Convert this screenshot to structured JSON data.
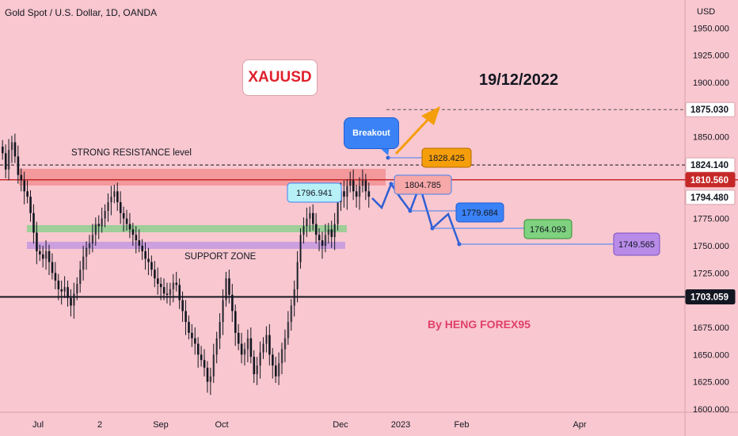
{
  "header": {
    "title": "Gold Spot / U.S. Dollar, 1D, OANDA"
  },
  "currency": "USD",
  "annotations": {
    "symbol": "XAUUSD",
    "date": "19/12/2022",
    "author": "By HENG FOREX95",
    "resistance": "STRONG RESISTANCE level",
    "support": "SUPPORT ZONE",
    "breakout": "Breakout"
  },
  "price_tags": [
    {
      "label": "1875.030",
      "value": 1875.03,
      "bg": "#ffffff",
      "fg": "#131722"
    },
    {
      "label": "1824.140",
      "value": 1824.14,
      "bg": "#ffffff",
      "fg": "#131722"
    },
    {
      "label": "1810.560",
      "value": 1810.56,
      "bg": "#c62828",
      "fg": "#ffffff"
    },
    {
      "label": "1794.480",
      "value": 1794.48,
      "bg": "#ffffff",
      "fg": "#131722"
    },
    {
      "label": "1703.059",
      "value": 1703.059,
      "bg": "#131722",
      "fg": "#ffffff"
    }
  ],
  "target_labels": [
    {
      "text": "1828.425",
      "bg": "#f59e0b",
      "border": "#b36b00"
    },
    {
      "text": "1796.941",
      "bg": "#b7f0f7",
      "border": "#3b82f6"
    },
    {
      "text": "1804.785",
      "bg": "#f7a8a8",
      "border": "#3b82f6"
    },
    {
      "text": "1779.684",
      "bg": "#3b82f6",
      "border": "#1e5fd4"
    },
    {
      "text": "1764.093",
      "bg": "#7fd27f",
      "border": "#2f8f2f"
    },
    {
      "text": "1749.565",
      "bg": "#b88be8",
      "border": "#7a4fc2"
    }
  ],
  "chart_data": {
    "type": "candlestick",
    "title": "Gold Spot / U.S. Dollar, 1D, OANDA",
    "ylabel": "USD",
    "ylim": [
      1600,
      1965
    ],
    "y_ticks": [
      "1950.000",
      "1925.000",
      "1900.000",
      "1875.030",
      "1850.000",
      "1824.140",
      "1810.560",
      "1794.480",
      "1775.000",
      "1750.000",
      "1725.000",
      "1703.059",
      "1675.000",
      "1650.000",
      "1625.000",
      "1600.000"
    ],
    "x_ticks": [
      "Jul",
      "2",
      "Sep",
      "Oct",
      "Dec",
      "2023",
      "Feb",
      "Apr"
    ],
    "levels": [
      {
        "name": "resistance",
        "value": 1824.14
      },
      {
        "name": "support",
        "value": 1703.059
      },
      {
        "name": "target",
        "value": 1875.03
      }
    ],
    "projection": [
      1794.48,
      1804.785,
      1779.684,
      1764.093,
      1749.565
    ],
    "closes": [
      1835,
      1820,
      1838,
      1845,
      1832,
      1815,
      1810,
      1800,
      1795,
      1780,
      1762,
      1745,
      1742,
      1738,
      1745,
      1735,
      1725,
      1718,
      1710,
      1708,
      1712,
      1702,
      1695,
      1706,
      1715,
      1728,
      1740,
      1748,
      1752,
      1760,
      1770,
      1768,
      1775,
      1782,
      1790,
      1795,
      1800,
      1790,
      1780,
      1775,
      1770,
      1765,
      1760,
      1755,
      1750,
      1745,
      1738,
      1735,
      1728,
      1720,
      1715,
      1712,
      1706,
      1705,
      1710,
      1716,
      1714,
      1700,
      1690,
      1680,
      1670,
      1665,
      1660,
      1650,
      1645,
      1638,
      1625,
      1630,
      1650,
      1665,
      1680,
      1700,
      1720,
      1705,
      1690,
      1670,
      1660,
      1650,
      1655,
      1665,
      1648,
      1632,
      1640,
      1652,
      1660,
      1668,
      1650,
      1640,
      1630,
      1642,
      1655,
      1665,
      1680,
      1695,
      1710,
      1735,
      1760,
      1768,
      1775,
      1780,
      1770,
      1760,
      1755,
      1750,
      1760,
      1765,
      1758,
      1770,
      1790,
      1800,
      1795,
      1805,
      1810,
      1800,
      1795,
      1805,
      1810,
      1800,
      1795
    ]
  }
}
